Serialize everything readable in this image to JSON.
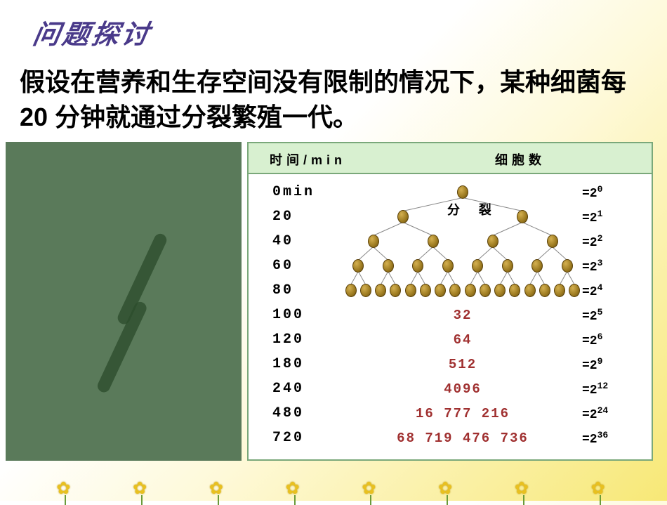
{
  "title": "问题探讨",
  "description": "假设在营养和生存空间没有限制的情况下，某种细菌每 20 分钟就通过分裂繁殖一代。",
  "table": {
    "header_time": "时间/min",
    "header_count": "细胞数",
    "split_label": "分 裂",
    "tree": {
      "levels": [
        {
          "time": "0min",
          "exp_base": "=2",
          "exp_sup": "0",
          "n": 1
        },
        {
          "time": "20",
          "exp_base": "=2",
          "exp_sup": "1",
          "n": 2
        },
        {
          "time": "40",
          "exp_base": "=2",
          "exp_sup": "2",
          "n": 4
        },
        {
          "time": "60",
          "exp_base": "=2",
          "exp_sup": "3",
          "n": 8
        },
        {
          "time": "80",
          "exp_base": "=2",
          "exp_sup": "4",
          "n": 16
        }
      ]
    },
    "text_rows": [
      {
        "time": "100",
        "value": "32",
        "exp_base": "=2",
        "exp_sup": "5"
      },
      {
        "time": "120",
        "value": "64",
        "exp_base": "=2",
        "exp_sup": "6"
      },
      {
        "time": "180",
        "value": "512",
        "exp_base": "=2",
        "exp_sup": "9"
      },
      {
        "time": "240",
        "value": "4096",
        "exp_base": "=2",
        "exp_sup": "12"
      },
      {
        "time": "480",
        "value": "16 777 216",
        "exp_base": "=2",
        "exp_sup": "24"
      },
      {
        "time": "720",
        "value": "68 719 476 736",
        "exp_base": "=2",
        "exp_sup": "36"
      }
    ]
  },
  "style": {
    "cell_color_light": "#d4b050",
    "cell_color_dark": "#6b5010",
    "header_bg": "#d8f0d0",
    "border_color": "#7aa87a",
    "title_color": "#4a3a8a",
    "value_color": "#a03030",
    "photo_bg": "#5a7a5a",
    "tree_width": 340,
    "tree_row_h": 35,
    "tree_top_pad": 6
  }
}
